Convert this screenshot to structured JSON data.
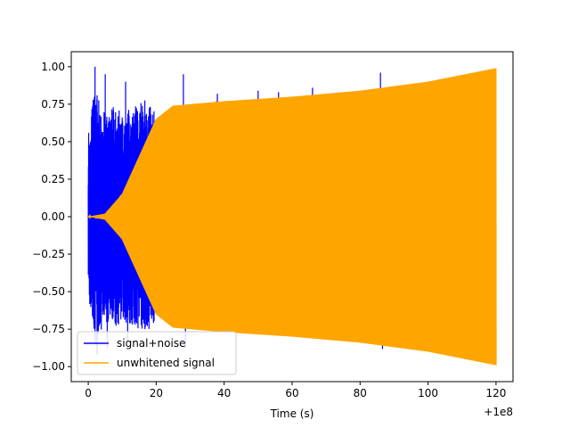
{
  "chart_data": {
    "type": "line",
    "title": "",
    "xlabel": "Time (s)",
    "ylabel": "",
    "x_offset_label": "+1e8",
    "xlim": [
      -5,
      125
    ],
    "ylim": [
      -1.1,
      1.1
    ],
    "xticks": [
      0,
      20,
      40,
      60,
      80,
      100,
      120
    ],
    "xtick_labels": [
      "0",
      "20",
      "40",
      "60",
      "80",
      "100",
      "120"
    ],
    "yticks": [
      -1.0,
      -0.75,
      -0.5,
      -0.25,
      0.0,
      0.25,
      0.5,
      0.75,
      1.0
    ],
    "ytick_labels": [
      "−1.00",
      "−0.75",
      "−0.50",
      "−0.25",
      "0.00",
      "0.25",
      "0.50",
      "0.75",
      "1.00"
    ],
    "grid": false,
    "legend_position": "lower-left",
    "series": [
      {
        "name": "signal+noise",
        "color": "#0000ff",
        "envelope_x": [
          0,
          2,
          4,
          6,
          8,
          10,
          12,
          14,
          16,
          18,
          20
        ],
        "envelope_y": [
          0.6,
          0.85,
          0.75,
          0.7,
          0.75,
          0.7,
          0.72,
          0.75,
          0.8,
          0.75,
          0.7
        ],
        "peaks_x": [
          2,
          5,
          11,
          28,
          38,
          50,
          56,
          66,
          86
        ],
        "peaks_y": [
          1.0,
          0.95,
          0.9,
          0.95,
          0.82,
          0.84,
          0.83,
          0.86,
          0.96
        ]
      },
      {
        "name": "unwhitened signal",
        "color": "#ffa500",
        "envelope_x": [
          0,
          5,
          10,
          15,
          20,
          25,
          30,
          40,
          60,
          80,
          100,
          120
        ],
        "envelope_y": [
          0.0,
          0.02,
          0.15,
          0.4,
          0.65,
          0.74,
          0.75,
          0.77,
          0.8,
          0.84,
          0.9,
          0.99
        ]
      }
    ]
  }
}
